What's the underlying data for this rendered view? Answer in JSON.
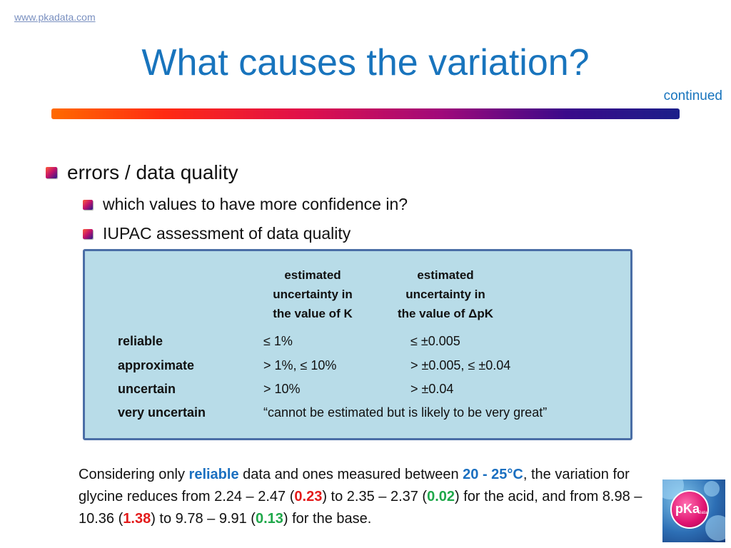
{
  "header": {
    "site": "www.pkadata.com",
    "title": "What causes the variation?",
    "continued": "continued"
  },
  "bullets": {
    "main": "errors / data quality",
    "sub1": "which values to have more confidence in?",
    "sub2": "IUPAC assessment of data quality"
  },
  "table": {
    "col1": [
      "estimated",
      "uncertainty in",
      "the value of K"
    ],
    "col2": [
      "estimated",
      "uncertainty in",
      "the value of ΔpK"
    ],
    "rows": [
      {
        "label": "reliable",
        "k": "≤ 1%",
        "dpk": "≤ ±0.005"
      },
      {
        "label": "approximate",
        "k": "> 1%, ≤ 10%",
        "dpk": "> ±0.005, ≤ ±0.04"
      },
      {
        "label": "uncertain",
        "k": "> 10%",
        "dpk": "> ±0.04"
      },
      {
        "label": "very uncertain",
        "k": "“cannot be estimated but is likely to be very great”",
        "dpk": ""
      }
    ]
  },
  "note": {
    "p1": "Considering only ",
    "reliable": "reliable",
    "p2": " data and ones measured between ",
    "temp": "20 - 25°C",
    "p3": ", the variation for glycine reduces from 2.24 – 2.47 (",
    "v1": "0.23",
    "p4": ") to 2.35 – 2.37 (",
    "v2": "0.02",
    "p5": ") for the acid, and from 8.98 – 10.36 (",
    "v3": "1.38",
    "p6": ") to 9.78 – 9.91 (",
    "v4": "0.13",
    "p7": ") for the base."
  },
  "logo": {
    "text": "pKa",
    "sub": "Data"
  },
  "colors": {
    "title": "#1874bd",
    "box": "#b8dce8",
    "border": "#4a6ea6",
    "red": "#e31b1b",
    "green": "#1fa84a"
  }
}
